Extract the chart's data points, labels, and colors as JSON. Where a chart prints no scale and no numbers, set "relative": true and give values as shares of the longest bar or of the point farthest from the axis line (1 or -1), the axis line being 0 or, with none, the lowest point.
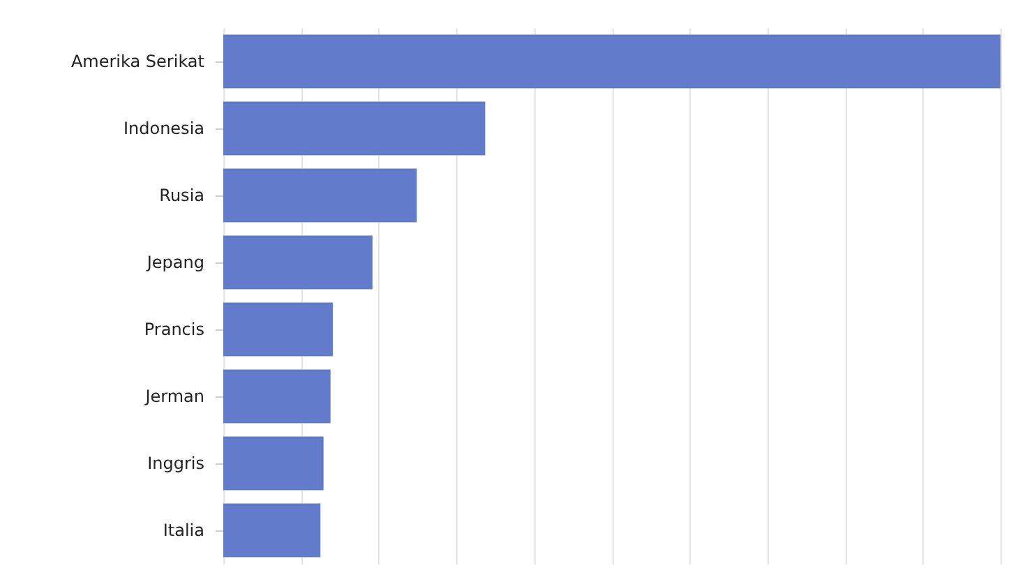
{
  "chart_data": {
    "type": "bar",
    "orientation": "horizontal",
    "relative": true,
    "categories": [
      "Amerika Serikat",
      "Indonesia",
      "Rusia",
      "Jepang",
      "Prancis",
      "Jerman",
      "Inggris",
      "Italia"
    ],
    "values": [
      1,
      0.337,
      0.249,
      0.192,
      0.141,
      0.138,
      0.129,
      0.125
    ],
    "color": "#637bcb",
    "grid": "x"
  }
}
